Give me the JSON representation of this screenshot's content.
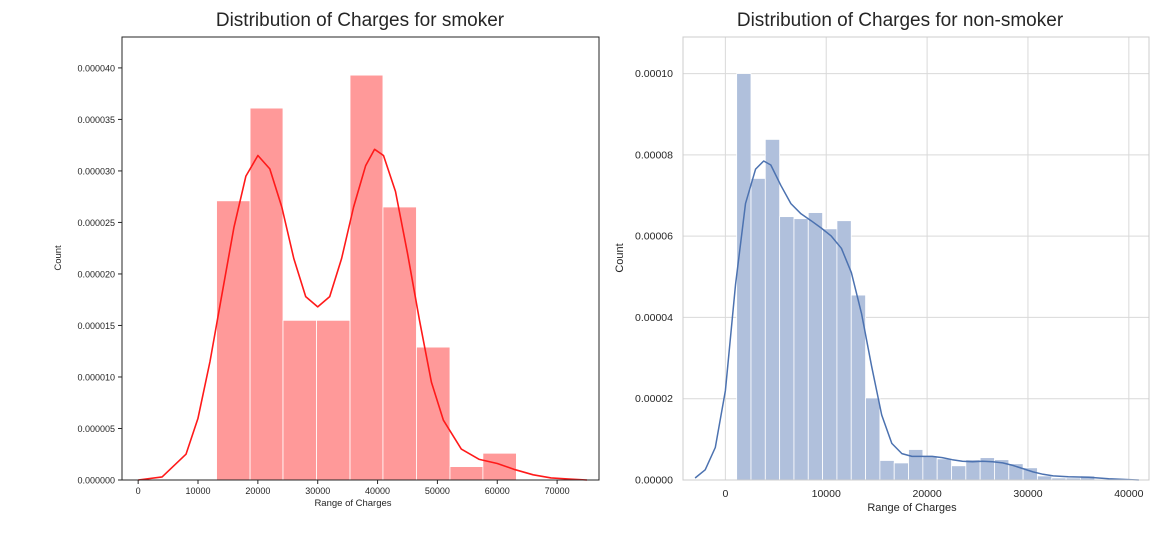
{
  "chart_data": [
    {
      "type": "bar",
      "title": "Distribution of Charges for smoker",
      "xlabel": "Range of Charges",
      "ylabel": "Count",
      "xlim": [
        -2700,
        77000
      ],
      "ylim": [
        0,
        4.3e-05
      ],
      "xticks": [
        0,
        10000,
        20000,
        30000,
        40000,
        50000,
        60000,
        70000
      ],
      "xtick_labels": [
        "0",
        "10000",
        "20000",
        "30000",
        "40000",
        "50000",
        "60000",
        "70000"
      ],
      "yticks": [
        0,
        5e-06,
        1e-05,
        1.5e-05,
        2e-05,
        2.5e-05,
        3e-05,
        3.5e-05,
        4e-05
      ],
      "ytick_labels": [
        "0.000000",
        "0.000005",
        "0.000010",
        "0.000015",
        "0.000020",
        "0.000025",
        "0.000030",
        "0.000035",
        "0.000040"
      ],
      "grid": false,
      "colors": {
        "bar": "#ff9999",
        "kde": "#ff1a1a"
      },
      "bins": [
        {
          "x0": 13100,
          "x1": 18700,
          "value": 2.71e-05
        },
        {
          "x0": 18700,
          "x1": 24200,
          "value": 3.61e-05
        },
        {
          "x0": 24200,
          "x1": 29800,
          "value": 1.55e-05
        },
        {
          "x0": 29800,
          "x1": 35400,
          "value": 1.55e-05
        },
        {
          "x0": 35400,
          "x1": 40900,
          "value": 3.93e-05
        },
        {
          "x0": 40900,
          "x1": 46500,
          "value": 2.65e-05
        },
        {
          "x0": 46500,
          "x1": 52100,
          "value": 1.29e-05
        },
        {
          "x0": 52100,
          "x1": 57600,
          "value": 1.3e-06
        },
        {
          "x0": 57600,
          "x1": 63200,
          "value": 2.6e-06
        }
      ],
      "kde": {
        "x": [
          0,
          4000,
          8000,
          10000,
          12000,
          14000,
          16000,
          18000,
          20000,
          22000,
          24000,
          26000,
          28000,
          30000,
          32000,
          34000,
          36000,
          38000,
          39500,
          41000,
          43000,
          45000,
          47000,
          49000,
          51000,
          54000,
          57000,
          60000,
          63000,
          66000,
          69000,
          72000,
          75000
        ],
        "y": [
          0,
          3e-07,
          2.5e-06,
          6e-06,
          1.15e-05,
          1.8e-05,
          2.45e-05,
          2.95e-05,
          3.15e-05,
          3.02e-05,
          2.65e-05,
          2.15e-05,
          1.78e-05,
          1.68e-05,
          1.78e-05,
          2.15e-05,
          2.65e-05,
          3.05e-05,
          3.21e-05,
          3.15e-05,
          2.8e-05,
          2.2e-05,
          1.55e-05,
          9.5e-06,
          5.8e-06,
          3e-06,
          2e-06,
          1.6e-06,
          1e-06,
          5e-07,
          2e-07,
          1e-07,
          0
        ]
      }
    },
    {
      "type": "bar",
      "title": "Distribution of Charges for non-smoker",
      "xlabel": "Range of Charges",
      "ylabel": "Count",
      "xlim": [
        -4200,
        42000
      ],
      "ylim": [
        0,
        0.000109
      ],
      "xticks": [
        0,
        10000,
        20000,
        30000,
        40000
      ],
      "xtick_labels": [
        "0",
        "10000",
        "20000",
        "30000",
        "40000"
      ],
      "yticks": [
        0,
        2e-05,
        4e-05,
        6e-05,
        8e-05,
        0.0001
      ],
      "ytick_labels": [
        "0.00000",
        "0.00002",
        "0.00004",
        "0.00006",
        "0.00008",
        "0.00010"
      ],
      "grid": true,
      "colors": {
        "bar": "#b0c0dc",
        "kde": "#4c72b0"
      },
      "bins": [
        {
          "x0": 1120,
          "x1": 2540,
          "value": 0.0001
        },
        {
          "x0": 2540,
          "x1": 3960,
          "value": 7.42e-05
        },
        {
          "x0": 3960,
          "x1": 5380,
          "value": 8.38e-05
        },
        {
          "x0": 5380,
          "x1": 6800,
          "value": 6.48e-05
        },
        {
          "x0": 6800,
          "x1": 8220,
          "value": 6.43e-05
        },
        {
          "x0": 8220,
          "x1": 9640,
          "value": 6.58e-05
        },
        {
          "x0": 9640,
          "x1": 11060,
          "value": 6.18e-05
        },
        {
          "x0": 11060,
          "x1": 12480,
          "value": 6.38e-05
        },
        {
          "x0": 12480,
          "x1": 13900,
          "value": 4.55e-05
        },
        {
          "x0": 13900,
          "x1": 15320,
          "value": 2.02e-05
        },
        {
          "x0": 15320,
          "x1": 16740,
          "value": 4.8e-06
        },
        {
          "x0": 16740,
          "x1": 18160,
          "value": 4.2e-06
        },
        {
          "x0": 18160,
          "x1": 19580,
          "value": 7.5e-06
        },
        {
          "x0": 19580,
          "x1": 21000,
          "value": 5.8e-06
        },
        {
          "x0": 21000,
          "x1": 22420,
          "value": 5.2e-06
        },
        {
          "x0": 22420,
          "x1": 23840,
          "value": 3.5e-06
        },
        {
          "x0": 23840,
          "x1": 25260,
          "value": 5e-06
        },
        {
          "x0": 25260,
          "x1": 26680,
          "value": 5.5e-06
        },
        {
          "x0": 26680,
          "x1": 28100,
          "value": 5e-06
        },
        {
          "x0": 28100,
          "x1": 29520,
          "value": 4e-06
        },
        {
          "x0": 29520,
          "x1": 30940,
          "value": 3e-06
        },
        {
          "x0": 30940,
          "x1": 32360,
          "value": 1e-06
        },
        {
          "x0": 32360,
          "x1": 33780,
          "value": 5e-07
        },
        {
          "x0": 33780,
          "x1": 35200,
          "value": 5e-07
        },
        {
          "x0": 35200,
          "x1": 36620,
          "value": 1e-06
        }
      ],
      "kde": {
        "x": [
          -3000,
          -2000,
          -1000,
          0,
          1000,
          2000,
          3000,
          3800,
          4500,
          5500,
          6500,
          7500,
          8500,
          9500,
          10500,
          11500,
          12500,
          13500,
          14500,
          15500,
          16500,
          17500,
          18500,
          19500,
          20500,
          21500,
          22500,
          23500,
          24500,
          25500,
          26500,
          27500,
          28500,
          29500,
          30500,
          31500,
          32500,
          34000,
          36000,
          38000,
          40000,
          41000
        ],
        "y": [
          5e-07,
          2.5e-06,
          8e-06,
          2.2e-05,
          4.8e-05,
          6.8e-05,
          7.65e-05,
          7.85e-05,
          7.75e-05,
          7.25e-05,
          6.8e-05,
          6.55e-05,
          6.38e-05,
          6.2e-05,
          6e-05,
          5.7e-05,
          5.1e-05,
          4.1e-05,
          2.8e-05,
          1.6e-05,
          9e-06,
          6.5e-06,
          5.8e-06,
          5.8e-06,
          5.8e-06,
          5.5e-06,
          5e-06,
          4.6e-06,
          4.5e-06,
          4.6e-06,
          4.5e-06,
          4.2e-06,
          3.6e-06,
          2.8e-06,
          2e-06,
          1.4e-06,
          1e-06,
          8e-07,
          7e-07,
          3e-07,
          1e-07,
          0
        ]
      }
    }
  ]
}
